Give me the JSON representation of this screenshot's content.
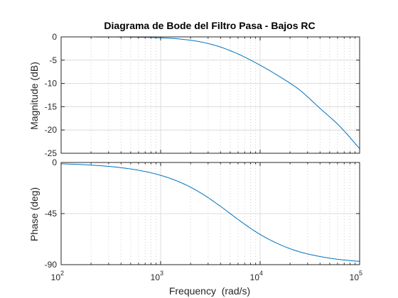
{
  "chart_data": [
    {
      "type": "line",
      "title": "Diagrama de Bode del Filtro Pasa - Bajos RC",
      "xlabel": "",
      "ylabel": "Magnitude (dB)",
      "xscale": "log",
      "xlim": [
        100,
        100000
      ],
      "ylim": [
        -25,
        0
      ],
      "yticks": [
        "0",
        "-5",
        "-10",
        "-15",
        "-20",
        "-25"
      ],
      "yticks_values": [
        0,
        -5,
        -10,
        -15,
        -20,
        -25
      ],
      "grid": true,
      "minor_grid": true,
      "line_color": "#0072BD",
      "series": [
        {
          "x": [
            100,
            158,
            251,
            398,
            631,
            1000,
            1585,
            2512,
            3981,
            6310,
            10000,
            15849,
            25119,
            39811,
            63096,
            100000
          ],
          "values": [
            -0.002,
            -0.005,
            -0.013,
            -0.033,
            -0.082,
            -0.2,
            -0.47,
            -1.06,
            -2.17,
            -3.88,
            -6.08,
            -8.59,
            -11.45,
            -15.32,
            -19.2,
            -24.0
          ]
        }
      ]
    },
    {
      "type": "line",
      "title": "",
      "xlabel": "Frequency  (rad/s)",
      "ylabel": "Phase (deg)",
      "xscale": "log",
      "xlim": [
        100,
        100000
      ],
      "ylim": [
        -90,
        0
      ],
      "xticks_base": "10",
      "xticks_exponents": [
        "2",
        "3",
        "4",
        "5"
      ],
      "xticks_values": [
        100,
        1000,
        10000,
        100000
      ],
      "yticks": [
        "0",
        "-45",
        "-90"
      ],
      "yticks_values": [
        0,
        -45,
        -90
      ],
      "grid": true,
      "minor_grid": true,
      "line_color": "#0072BD",
      "series": [
        {
          "x": [
            100,
            158,
            251,
            398,
            631,
            1000,
            1585,
            2512,
            3981,
            6310,
            10000,
            15849,
            25119,
            39811,
            63096,
            100000
          ],
          "values": [
            -1.15,
            -1.81,
            -2.88,
            -4.55,
            -7.19,
            -11.31,
            -17.59,
            -26.65,
            -38.5,
            -51.6,
            -63.4,
            -72.4,
            -78.8,
            -82.8,
            -85.5,
            -87.1
          ]
        }
      ]
    }
  ]
}
